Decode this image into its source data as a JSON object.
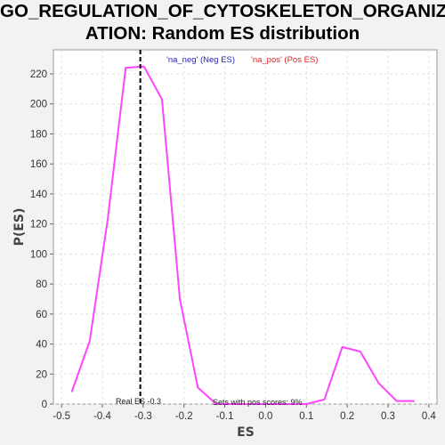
{
  "chart_data": {
    "type": "line",
    "title_lines": [
      "GO_REGULATION_OF_CYTOSKELETON_ORGANIZ",
      "ATION: Random ES distribution"
    ],
    "xlabel": "ES",
    "ylabel": "P(ES)",
    "xlim": [
      -0.52,
      0.42
    ],
    "ylim": [
      0,
      236
    ],
    "x_ticks": [
      -0.5,
      -0.4,
      -0.3,
      -0.2,
      -0.1,
      0.0,
      0.1,
      0.2,
      0.3,
      0.4
    ],
    "x_tick_labels": [
      "-0.5",
      "-0.4",
      "-0.3",
      "-0.2",
      "-0.1",
      "0.0",
      "0.1",
      "0.2",
      "0.3",
      "0.4"
    ],
    "y_ticks": [
      0,
      20,
      40,
      60,
      80,
      100,
      120,
      140,
      160,
      180,
      200,
      220
    ],
    "y_tick_labels": [
      "0",
      "20",
      "40",
      "60",
      "80",
      "100",
      "120",
      "140",
      "160",
      "180",
      "200",
      "220"
    ],
    "grid": true,
    "series": [
      {
        "color": "#ff44ff",
        "x": [
          -0.475,
          -0.431,
          -0.387,
          -0.343,
          -0.298,
          -0.254,
          -0.21,
          -0.166,
          -0.121,
          -0.077,
          -0.033,
          0.012,
          0.056,
          0.1,
          0.144,
          0.188,
          0.232,
          0.277,
          0.321,
          0.365
        ],
        "y": [
          8,
          42,
          123,
          224,
          225,
          203,
          70,
          11,
          0,
          0,
          0,
          0,
          0,
          0,
          3,
          38,
          35,
          14,
          2,
          2
        ]
      }
    ],
    "real_es": -0.3,
    "real_es_x": -0.307,
    "legend": [
      {
        "label": "'na_neg' (Neg ES)",
        "color": "#2222cc"
      },
      {
        "label": "'na_pos' (Pos ES)",
        "color": "#dd2222"
      }
    ],
    "legend_position": "top-center",
    "annotations": {
      "real_es": "Real ES -0.3",
      "pos_scores": "Sets with pos scores: 9%"
    }
  }
}
